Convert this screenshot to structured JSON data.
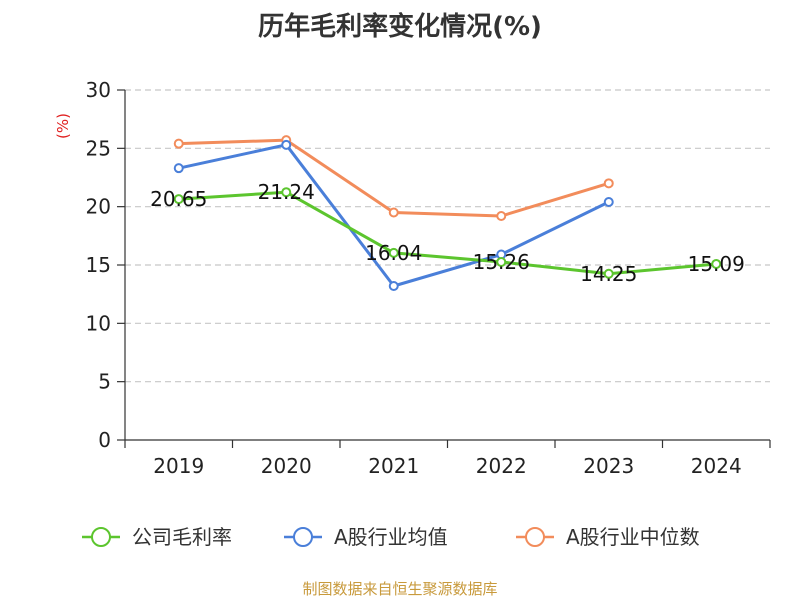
{
  "title": "历年毛利率变化情况(%)",
  "source": "制图数据来自恒生聚源数据库",
  "chart_data": {
    "type": "line",
    "title": "历年毛利率变化情况(%)",
    "unit_label": "(%)",
    "categories": [
      "2019",
      "2020",
      "2021",
      "2022",
      "2023",
      "2024"
    ],
    "ylim": [
      0,
      30
    ],
    "yticks": [
      0,
      5,
      10,
      15,
      20,
      25,
      30
    ],
    "grid": true,
    "legend_position": "bottom",
    "series": [
      {
        "name": "公司毛利率",
        "color": "#5cc52e",
        "values": [
          20.65,
          21.24,
          16.04,
          15.26,
          14.25,
          15.09
        ],
        "labels": [
          "20.65",
          "21.24",
          "16.04",
          "15.26",
          "14.25",
          "15.09"
        ]
      },
      {
        "name": "A股行业均值",
        "color": "#4a7fd9",
        "values": [
          23.3,
          25.3,
          13.2,
          15.9,
          20.4,
          null
        ]
      },
      {
        "name": "A股行业中位数",
        "color": "#f28c5b",
        "values": [
          25.4,
          25.7,
          19.5,
          19.2,
          22.0,
          null
        ]
      }
    ]
  }
}
